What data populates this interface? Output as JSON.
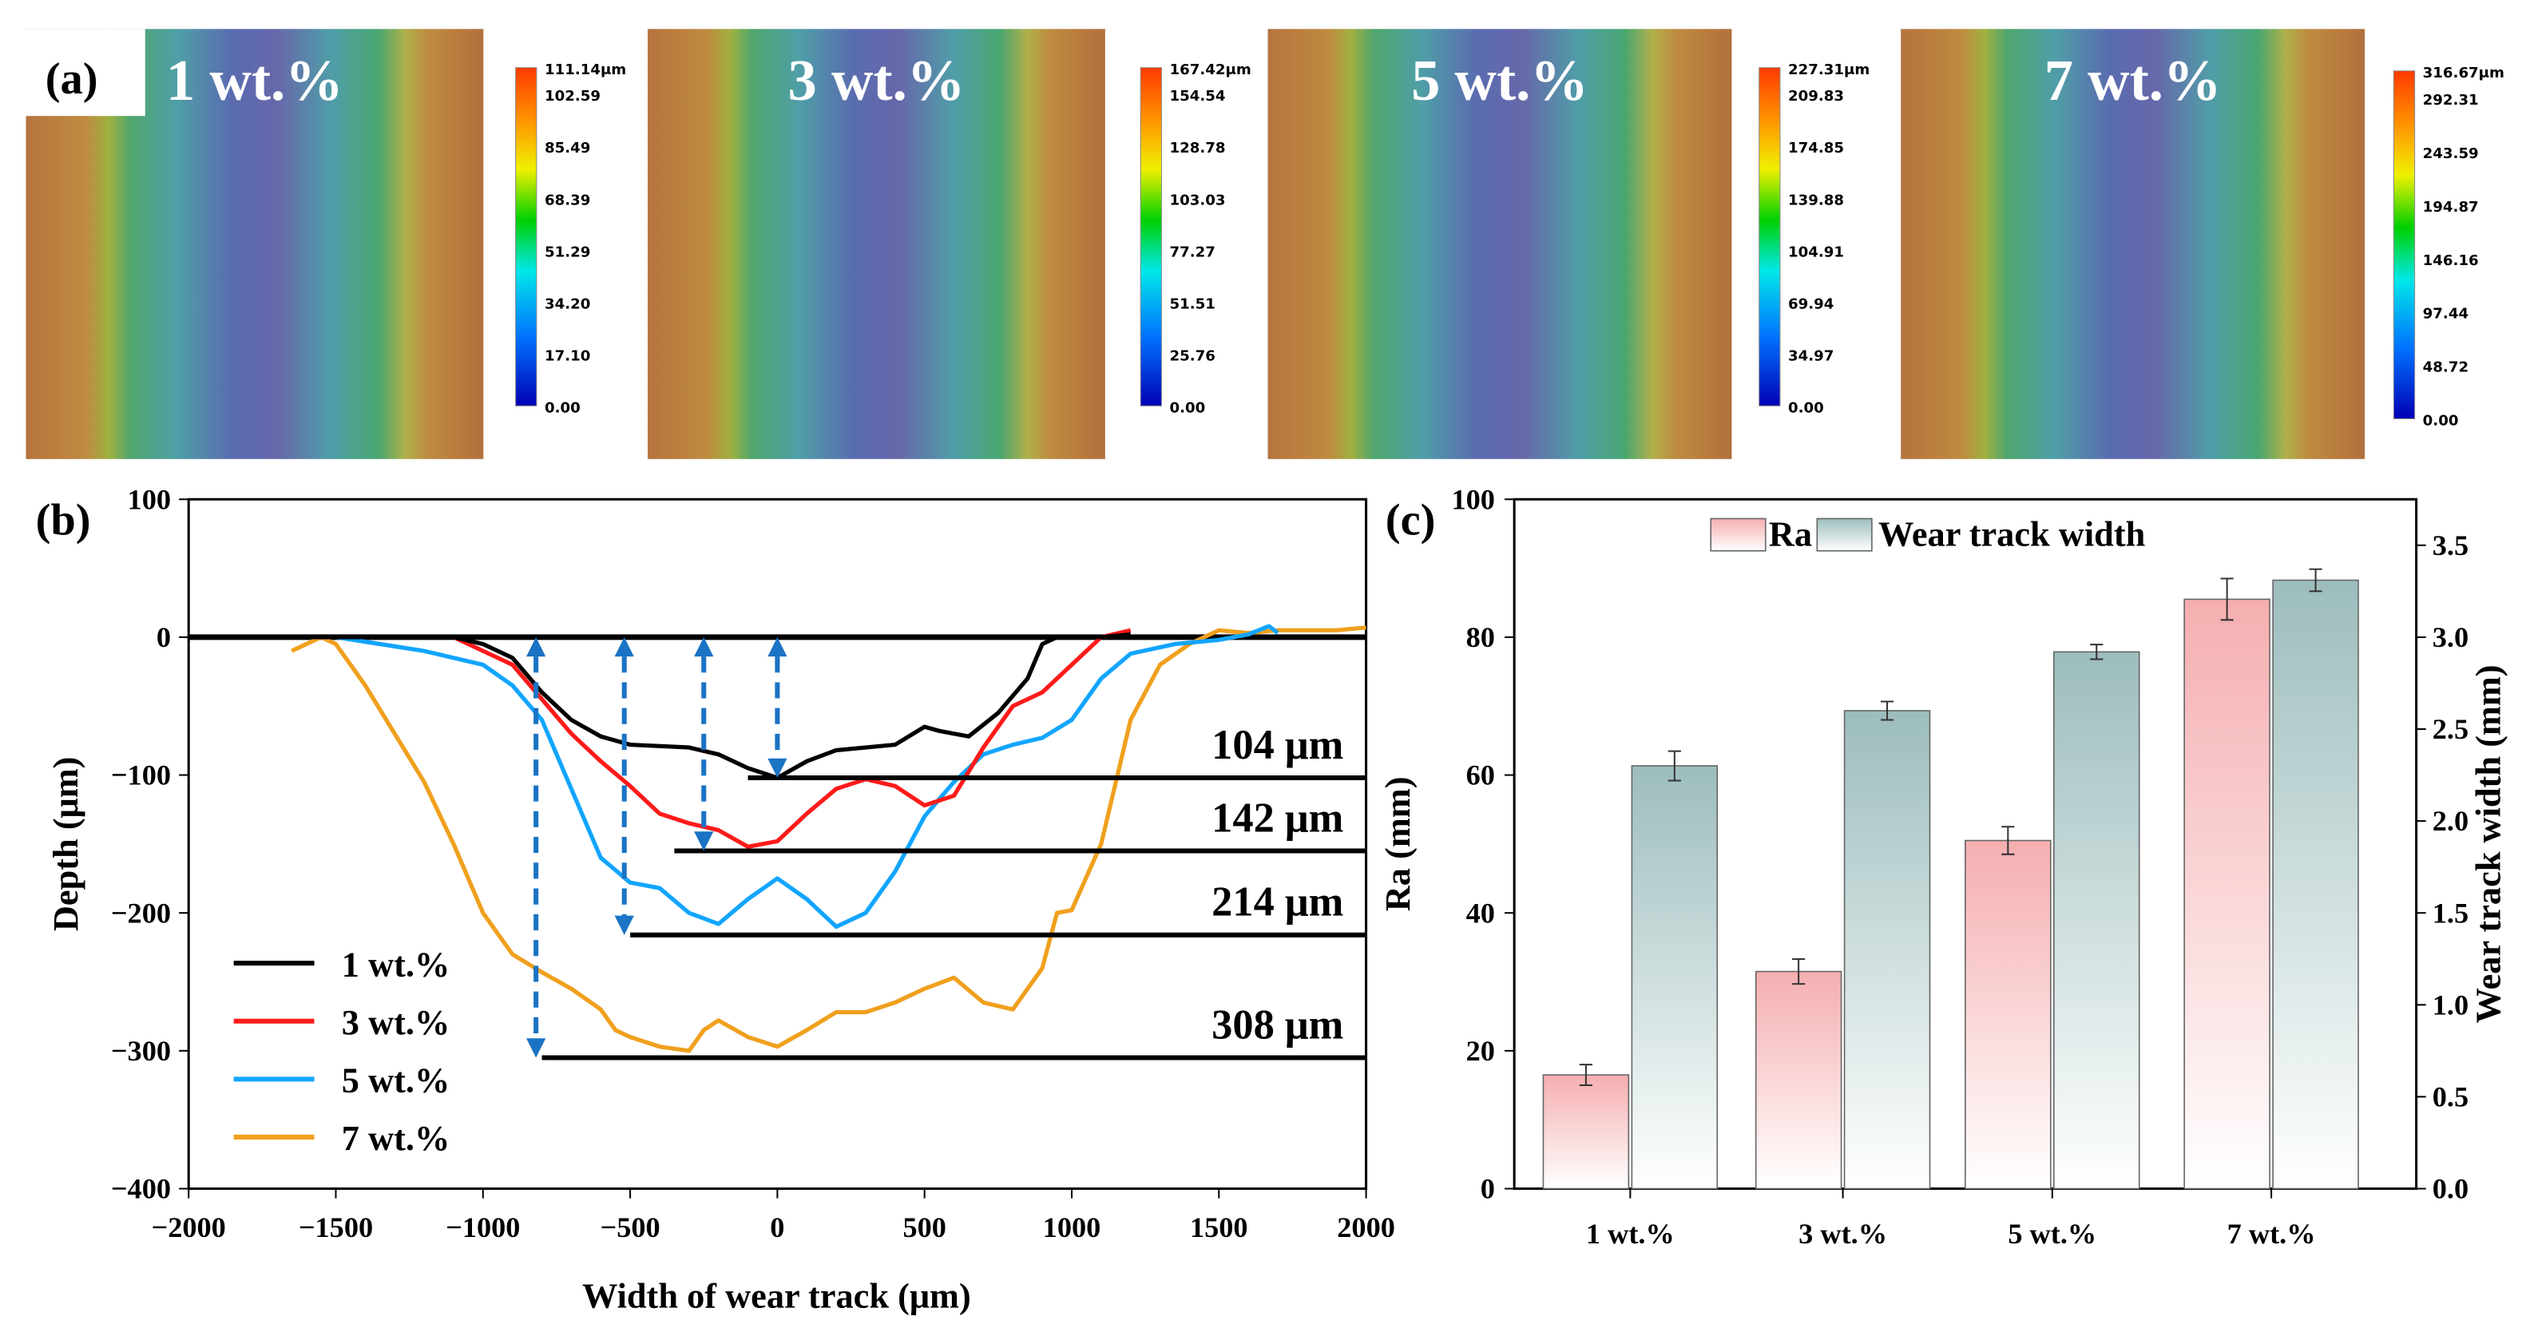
{
  "panel_labels": [
    "(a)",
    "(b)",
    "(c)"
  ],
  "chart_data": [
    {
      "type": "heatmap",
      "panel": "(a)",
      "maps": [
        {
          "label": "1 wt.%",
          "colorbar": [
            "111.14μm",
            "102.59",
            "85.49",
            "68.39",
            "51.29",
            "34.20",
            "17.10",
            "0.00"
          ]
        },
        {
          "label": "3 wt.%",
          "colorbar": [
            "167.42μm",
            "154.54",
            "128.78",
            "103.03",
            "77.27",
            "51.51",
            "25.76",
            "0.00"
          ]
        },
        {
          "label": "5 wt.%",
          "colorbar": [
            "227.31μm",
            "209.83",
            "174.85",
            "139.88",
            "104.91",
            "69.94",
            "34.97",
            "0.00"
          ]
        },
        {
          "label": "7 wt.%",
          "colorbar": [
            "316.67μm",
            "292.31",
            "243.59",
            "194.87",
            "146.16",
            "97.44",
            "48.72",
            "0.00"
          ]
        }
      ],
      "colors": {
        "low": "#0000c8",
        "mid": "#00e0e0",
        "high": "#ff4a00"
      }
    },
    {
      "type": "line",
      "panel": "(b)",
      "xlabel": "Width of wear track (μm)",
      "ylabel": "Depth (μm)",
      "xlim": [
        -2000,
        2000
      ],
      "ylim": [
        -400,
        100
      ],
      "xticks": [
        -2000,
        -1500,
        -1000,
        -500,
        0,
        500,
        1000,
        1500,
        2000
      ],
      "xtick_labels": [
        "−2000",
        "−1500",
        "−1000",
        "−500",
        "0",
        "500",
        "1000",
        "1500",
        "2000"
      ],
      "yticks": [
        100,
        0,
        -100,
        -200,
        -300,
        -400
      ],
      "ytick_labels": [
        "100",
        "0",
        "−100",
        "−200",
        "−300",
        "−400"
      ],
      "legend_position": "bottom-left",
      "series": [
        {
          "name": "1 wt.%",
          "color": "#000000",
          "points": [
            [
              -2000,
              0
            ],
            [
              -1100,
              0
            ],
            [
              -1000,
              -5
            ],
            [
              -900,
              -15
            ],
            [
              -800,
              -40
            ],
            [
              -700,
              -60
            ],
            [
              -600,
              -72
            ],
            [
              -500,
              -78
            ],
            [
              -300,
              -80
            ],
            [
              -200,
              -85
            ],
            [
              -100,
              -95
            ],
            [
              0,
              -102
            ],
            [
              100,
              -90
            ],
            [
              200,
              -82
            ],
            [
              400,
              -78
            ],
            [
              500,
              -65
            ],
            [
              550,
              -68
            ],
            [
              650,
              -72
            ],
            [
              750,
              -55
            ],
            [
              850,
              -30
            ],
            [
              900,
              -5
            ],
            [
              950,
              0
            ],
            [
              1100,
              0
            ],
            [
              1200,
              2
            ]
          ]
        },
        {
          "name": "3 wt.%",
          "color": "#ff1a1a",
          "points": [
            [
              -1100,
              0
            ],
            [
              -900,
              -20
            ],
            [
              -800,
              -45
            ],
            [
              -700,
              -70
            ],
            [
              -600,
              -90
            ],
            [
              -500,
              -108
            ],
            [
              -400,
              -128
            ],
            [
              -300,
              -135
            ],
            [
              -200,
              -140
            ],
            [
              -100,
              -152
            ],
            [
              0,
              -148
            ],
            [
              100,
              -128
            ],
            [
              200,
              -110
            ],
            [
              300,
              -103
            ],
            [
              400,
              -108
            ],
            [
              500,
              -122
            ],
            [
              600,
              -115
            ],
            [
              700,
              -80
            ],
            [
              800,
              -50
            ],
            [
              900,
              -40
            ],
            [
              1000,
              -20
            ],
            [
              1100,
              0
            ],
            [
              1200,
              5
            ]
          ]
        },
        {
          "name": "5 wt.%",
          "color": "#12a5ff",
          "points": [
            [
              -1500,
              0
            ],
            [
              -1200,
              -10
            ],
            [
              -1000,
              -20
            ],
            [
              -900,
              -35
            ],
            [
              -800,
              -60
            ],
            [
              -700,
              -110
            ],
            [
              -600,
              -160
            ],
            [
              -500,
              -178
            ],
            [
              -400,
              -182
            ],
            [
              -300,
              -200
            ],
            [
              -200,
              -208
            ],
            [
              -100,
              -190
            ],
            [
              0,
              -175
            ],
            [
              100,
              -190
            ],
            [
              200,
              -210
            ],
            [
              300,
              -200
            ],
            [
              400,
              -170
            ],
            [
              500,
              -130
            ],
            [
              600,
              -105
            ],
            [
              700,
              -85
            ],
            [
              800,
              -78
            ],
            [
              900,
              -73
            ],
            [
              1000,
              -60
            ],
            [
              1100,
              -30
            ],
            [
              1200,
              -12
            ],
            [
              1350,
              -5
            ],
            [
              1500,
              -2
            ],
            [
              1600,
              2
            ],
            [
              1670,
              8
            ],
            [
              1700,
              3
            ]
          ]
        },
        {
          "name": "7 wt.%",
          "color": "#f0a01e",
          "points": [
            [
              -1650,
              -10
            ],
            [
              -1550,
              0
            ],
            [
              -1500,
              -5
            ],
            [
              -1400,
              -35
            ],
            [
              -1300,
              -70
            ],
            [
              -1200,
              -105
            ],
            [
              -1100,
              -150
            ],
            [
              -1000,
              -200
            ],
            [
              -900,
              -230
            ],
            [
              -800,
              -243
            ],
            [
              -700,
              -255
            ],
            [
              -600,
              -270
            ],
            [
              -550,
              -285
            ],
            [
              -500,
              -290
            ],
            [
              -400,
              -297
            ],
            [
              -300,
              -300
            ],
            [
              -250,
              -285
            ],
            [
              -200,
              -278
            ],
            [
              -100,
              -290
            ],
            [
              0,
              -297
            ],
            [
              100,
              -285
            ],
            [
              200,
              -272
            ],
            [
              300,
              -272
            ],
            [
              400,
              -265
            ],
            [
              500,
              -255
            ],
            [
              600,
              -247
            ],
            [
              700,
              -265
            ],
            [
              800,
              -270
            ],
            [
              900,
              -240
            ],
            [
              950,
              -200
            ],
            [
              1000,
              -198
            ],
            [
              1100,
              -150
            ],
            [
              1200,
              -60
            ],
            [
              1300,
              -20
            ],
            [
              1400,
              -5
            ],
            [
              1500,
              5
            ],
            [
              1600,
              3
            ],
            [
              1700,
              5
            ],
            [
              1900,
              5
            ],
            [
              2000,
              7
            ]
          ]
        }
      ],
      "depth_markers": [
        {
          "label": "104 μm",
          "depth": -102,
          "x_start": -100,
          "arrow_x": 0
        },
        {
          "label": "142 μm",
          "depth": -155,
          "x_start": -350,
          "arrow_x": -250
        },
        {
          "label": "214 μm",
          "depth": -216,
          "x_start": -500,
          "arrow_x": -520
        },
        {
          "label": "308 μm",
          "depth": -305,
          "x_start": -800,
          "arrow_x": -820
        }
      ],
      "arrow_color": "#1a73c4"
    },
    {
      "type": "bar",
      "panel": "(c)",
      "categories": [
        "1 wt.%",
        "3 wt.%",
        "5 wt.%",
        "7 wt.%"
      ],
      "ylabel": "Ra (mm)",
      "y2label": "Wear track width (mm)",
      "ylim": [
        0,
        100
      ],
      "y2lim": [
        0,
        3.75
      ],
      "yticks": [
        0,
        20,
        40,
        60,
        80,
        100
      ],
      "y2ticks": [
        "0.0",
        "0.5",
        "1.0",
        "1.5",
        "2.0",
        "2.5",
        "3.0",
        "3.5"
      ],
      "legend_position": "top",
      "series": [
        {
          "name": "Ra",
          "axis": "left",
          "color": "#f5aeb0",
          "values": [
            16.5,
            31.5,
            50.5,
            85.5
          ],
          "errors": [
            1.5,
            1.8,
            2.0,
            3.0
          ]
        },
        {
          "name": "Wear track width",
          "axis": "right",
          "color": "#9dbdbd",
          "values": [
            2.3,
            2.6,
            2.92,
            3.31
          ],
          "errors": [
            0.08,
            0.05,
            0.04,
            0.06
          ]
        }
      ]
    }
  ]
}
